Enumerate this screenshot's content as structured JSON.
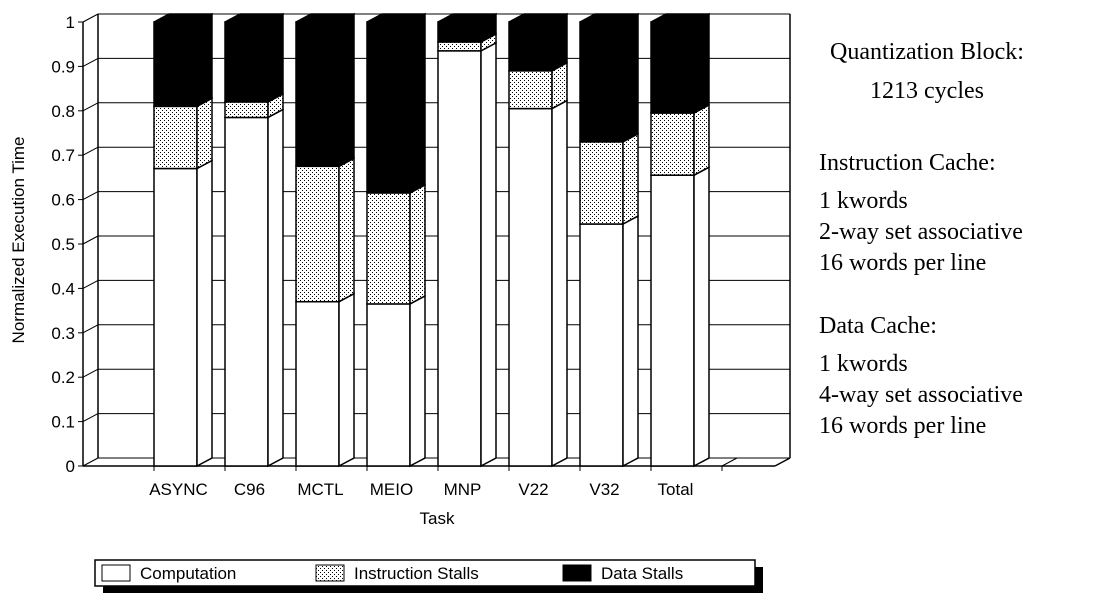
{
  "chart_data": {
    "type": "bar",
    "stacked": true,
    "three_d": true,
    "xlabel": "Task",
    "ylabel": "Normalized Execution Time",
    "ylim": [
      0,
      1
    ],
    "yticks": [
      "0",
      "0.1",
      "0.2",
      "0.3",
      "0.4",
      "0.5",
      "0.6",
      "0.7",
      "0.8",
      "0.9",
      "1"
    ],
    "categories": [
      "ASYNC",
      "C96",
      "MCTL",
      "MEIO",
      "MNP",
      "V22",
      "V32",
      "Total"
    ],
    "series": [
      {
        "name": "Computation",
        "values": [
          0.67,
          0.785,
          0.37,
          0.365,
          0.935,
          0.805,
          0.545,
          0.655
        ],
        "fill": "#ffffff"
      },
      {
        "name": "Instruction Stalls",
        "values": [
          0.14,
          0.035,
          0.305,
          0.25,
          0.02,
          0.085,
          0.185,
          0.14
        ],
        "fill": "dots"
      },
      {
        "name": "Data Stalls",
        "values": [
          0.19,
          0.18,
          0.325,
          0.385,
          0.045,
          0.11,
          0.27,
          0.205
        ],
        "fill": "#000000"
      }
    ],
    "grid": true,
    "legend_position": "bottom"
  },
  "info": {
    "quantization_title": "Quantization Block:",
    "quantization_value": "1213 cycles",
    "icache_title": "Instruction Cache:",
    "icache_lines": [
      "1 kwords",
      "2-way set associative",
      "16 words per line"
    ],
    "dcache_title": "Data Cache:",
    "dcache_lines": [
      "1 kwords",
      "4-way set associative",
      "16 words per line"
    ]
  }
}
